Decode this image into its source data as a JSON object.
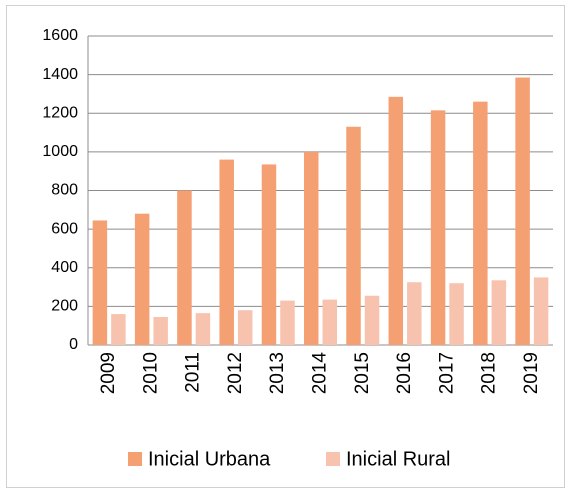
{
  "chart_data": {
    "type": "bar",
    "categories": [
      "2009",
      "2010",
      "2011",
      "2012",
      "2013",
      "2014",
      "2015",
      "2016",
      "2017",
      "2018",
      "2019"
    ],
    "series": [
      {
        "name": "Inicial Urbana",
        "color": "#f4a073",
        "values": [
          645,
          680,
          800,
          960,
          935,
          1000,
          1130,
          1285,
          1215,
          1260,
          1385
        ]
      },
      {
        "name": "Inicial Rural",
        "color": "#f7c3af",
        "values": [
          160,
          145,
          165,
          180,
          230,
          235,
          255,
          325,
          320,
          335,
          350
        ]
      }
    ],
    "ylim": [
      0,
      1600
    ],
    "yticks": [
      0,
      200,
      400,
      600,
      800,
      1000,
      1200,
      1400,
      1600
    ],
    "grid": true,
    "legend": "bottom"
  }
}
